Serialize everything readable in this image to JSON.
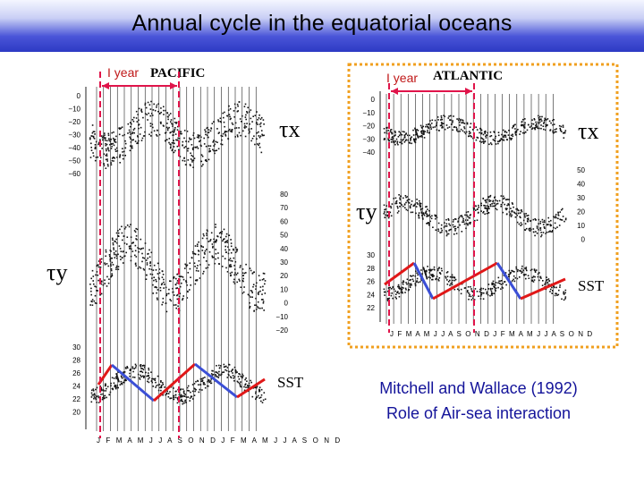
{
  "title": "Annual cycle in the equatorial oceans",
  "pacific": {
    "year_label": "I year",
    "ocean_label": "PACIFIC",
    "taux_label": "τx",
    "tauy_label": "τy",
    "sst_label": "SST",
    "taux_ticks": [
      "0",
      "−10",
      "−20",
      "−30",
      "−40",
      "−50",
      "−60"
    ],
    "tauy_ticks": [
      "80",
      "70",
      "60",
      "50",
      "40",
      "30",
      "20",
      "10",
      "0",
      "−10",
      "−20"
    ],
    "sst_ticks": [
      "30",
      "28",
      "26",
      "24",
      "22",
      "20"
    ],
    "months": "J F M A M J J A S O N D J F M A M J J A S O N D"
  },
  "atlantic": {
    "year_label": "I year",
    "ocean_label": "ATLANTIC",
    "taux_label": "τx",
    "tauy_label": "τy",
    "sst_label": "SST",
    "taux_ticks": [
      "0",
      "−10",
      "−20",
      "−30",
      "−40"
    ],
    "tauy_ticks": [
      "50",
      "40",
      "30",
      "20",
      "10",
      "0"
    ],
    "sst_ticks": [
      "30",
      "28",
      "26",
      "24",
      "22"
    ],
    "months": "J F M A M J J A S O N D J F M A M J J A S O N D"
  },
  "credit": {
    "line1": "Mitchell and Wallace (1992)",
    "line2": "Role of Air-sea interaction"
  },
  "colors": {
    "warming": "#e01818",
    "cooling": "#3b4fd6",
    "marker": "#e0144a",
    "frame": "#f0a020",
    "credit": "#14149a"
  }
}
